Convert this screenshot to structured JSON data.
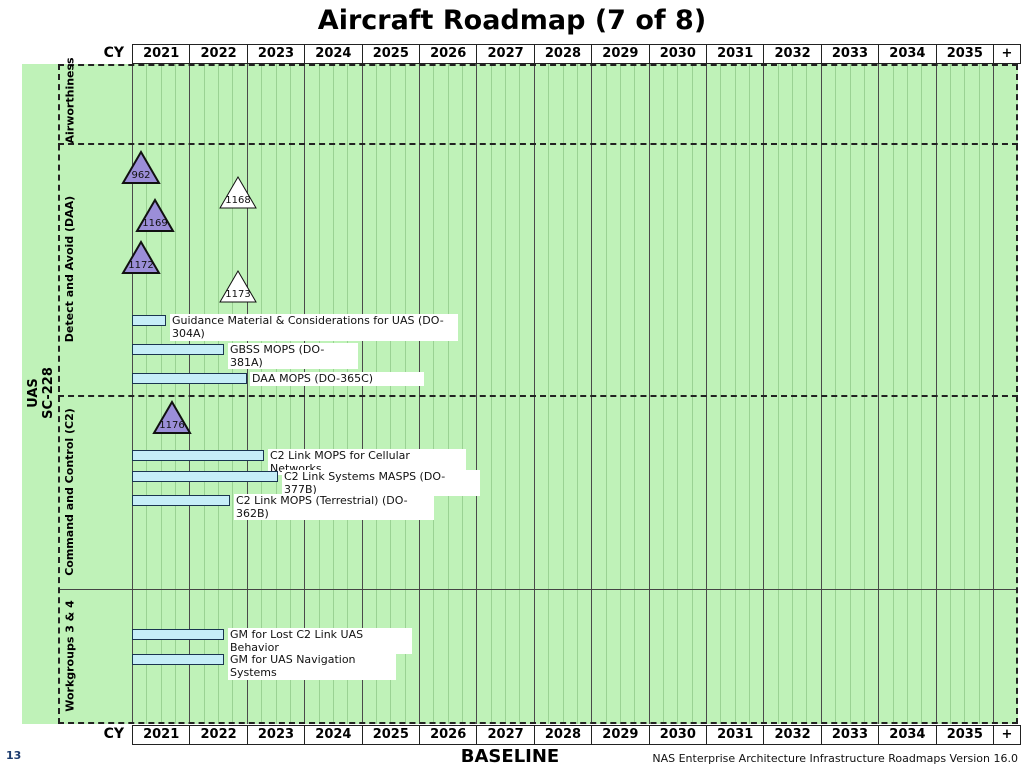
{
  "title": "Aircraft Roadmap (7 of 8)",
  "cy_label": "CY",
  "years": [
    "2021",
    "2022",
    "2023",
    "2024",
    "2025",
    "2026",
    "2027",
    "2028",
    "2029",
    "2030",
    "2031",
    "2032",
    "2033",
    "2034",
    "2035",
    "+"
  ],
  "group": {
    "label": "UAS\nSC-228",
    "color": "#bff2b8"
  },
  "bands": [
    {
      "label": "Airworthiness"
    },
    {
      "label": "Detect and Avoid (DAA)"
    },
    {
      "label": "Command and Control (C2)"
    },
    {
      "label": "Workgroups 3 & 4"
    }
  ],
  "milestones": [
    {
      "label": "962",
      "year": 2021.15,
      "fill": "#9b8ed8"
    },
    {
      "label": "1168",
      "year": 2022.85,
      "fill": "#ffffff"
    },
    {
      "label": "1169",
      "year": 2021.4,
      "fill": "#9b8ed8"
    },
    {
      "label": "1172",
      "year": 2021.15,
      "fill": "#9b8ed8"
    },
    {
      "label": "1173",
      "year": 2022.85,
      "fill": "#ffffff"
    },
    {
      "label": "1176",
      "year": 2021.7,
      "fill": "#9b8ed8"
    }
  ],
  "activities": [
    {
      "label": "Guidance Material & Considerations for UAS (DO-304A)",
      "start": 2021.0,
      "end": 2021.6
    },
    {
      "label": "GBSS MOPS (DO-381A)",
      "start": 2021.0,
      "end": 2022.6
    },
    {
      "label": "DAA MOPS (DO-365C)",
      "start": 2021.0,
      "end": 2023.0
    },
    {
      "label": "C2 Link MOPS for Cellular Networks",
      "start": 2021.0,
      "end": 2023.3
    },
    {
      "label": "C2 Link Systems MASPS (DO-377B)",
      "start": 2021.0,
      "end": 2023.55
    },
    {
      "label": "C2 Link MOPS (Terrestrial) (DO-362B)",
      "start": 2021.0,
      "end": 2022.7
    },
    {
      "label": "GM for Lost C2 Link UAS Behavior",
      "start": 2021.0,
      "end": 2022.6
    },
    {
      "label": "GM for UAS Navigation Systems",
      "start": 2021.0,
      "end": 2022.6
    }
  ],
  "colors": {
    "background": "#bff2b8",
    "bar_fill": "#c6eef8",
    "bar_border": "#1a3550",
    "milestone_complete": "#9b8ed8",
    "milestone_planned": "#ffffff"
  },
  "footer": {
    "page_number": "13",
    "baseline": "BASELINE",
    "version": "NAS Enterprise Architecture Infrastructure Roadmaps Version 16.0"
  }
}
